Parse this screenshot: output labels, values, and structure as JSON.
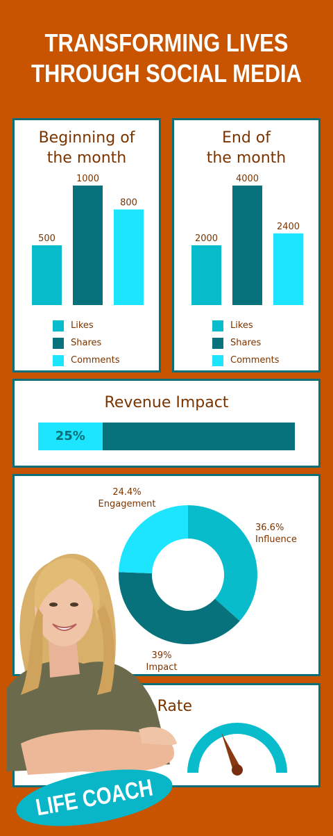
{
  "title": {
    "line1": "TRANSFORMING LIVES",
    "line2": "THROUGH SOCIAL MEDIA"
  },
  "colors": {
    "background": "#c85400",
    "border": "#0b6f7a",
    "likes": "#08bccc",
    "shares": "#07717c",
    "comments": "#1de4ff",
    "text": "#7a3400"
  },
  "chart_data": [
    {
      "type": "bar",
      "title_lines": [
        "Beginning of",
        "the month"
      ],
      "categories": [
        "Likes",
        "Shares",
        "Comments"
      ],
      "values": [
        500,
        1000,
        800
      ],
      "ylim": [
        0,
        1000
      ],
      "legend": "bottom"
    },
    {
      "type": "bar",
      "title_lines": [
        "End of",
        "the month"
      ],
      "categories": [
        "Likes",
        "Shares",
        "Comments"
      ],
      "values": [
        2000,
        4000,
        2400
      ],
      "ylim": [
        0,
        4000
      ],
      "legend": "bottom"
    },
    {
      "type": "bar",
      "title": "Revenue Impact",
      "values": [
        25
      ],
      "value_label": "25%",
      "ylim": [
        0,
        100
      ]
    },
    {
      "type": "pie",
      "slices": [
        {
          "label": "Influence",
          "value": 36.6,
          "value_label": "36.6%",
          "color": "#08bccc"
        },
        {
          "label": "Impact",
          "value": 39,
          "value_label": "39%",
          "color": "#07717c"
        },
        {
          "label": "Engagement",
          "value": 24.4,
          "value_label": "24.4%",
          "color": "#1de4ff"
        }
      ]
    },
    {
      "type": "gauge",
      "title": "Growth Rate",
      "value": 0.38
    }
  ],
  "badge": "LIFE COACH",
  "photo": {
    "icon": "life-coach-portrait"
  }
}
